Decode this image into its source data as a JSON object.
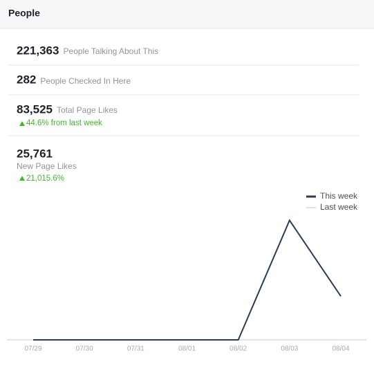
{
  "header": {
    "title": "People"
  },
  "stats": [
    {
      "number": "221,363",
      "label": "People Talking About This"
    },
    {
      "number": "282",
      "label": "People Checked In Here"
    },
    {
      "number": "83,525",
      "label": "Total Page Likes",
      "change": "44.6% from last week"
    },
    {
      "number": "25,761",
      "label": "New Page Likes",
      "change": "21,015.6%"
    }
  ],
  "chart_data": {
    "type": "line",
    "categories": [
      "07/29",
      "07/30",
      "07/31",
      "08/01",
      "08/02",
      "08/03",
      "08/04"
    ],
    "series": [
      {
        "name": "This week",
        "color": "#2b3a55",
        "values": [
          0,
          0,
          0,
          0,
          0,
          18900,
          6900
        ]
      },
      {
        "name": "Last week",
        "color": "#c8c8c8",
        "values": [
          0,
          0,
          0,
          0,
          0,
          0,
          0
        ]
      }
    ],
    "ylim": [
      0,
      22000
    ],
    "legend": "top-right"
  }
}
